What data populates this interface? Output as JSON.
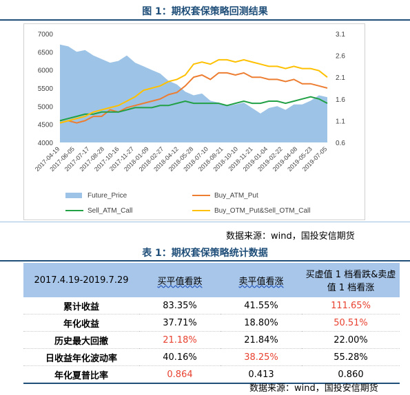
{
  "figure": {
    "title": "图 1：期权套保策略回测结果",
    "source": "数据来源：wind，国投安信期货"
  },
  "chart_data": {
    "type": "area",
    "x_tick_labels": [
      "2017-04-19",
      "2017-06-05",
      "2017-07-17",
      "2017-08-28",
      "2017-10-16",
      "2017-11-27",
      "2018-01-09",
      "2018-02-27",
      "2018-04-12",
      "2018-05-28",
      "2018-07-10",
      "2018-08-21",
      "2018-10-10",
      "2018-11-21",
      "2019-01-04",
      "2019-02-22",
      "2019-04-08",
      "2019-05-23",
      "2019-07-05"
    ],
    "y_left": {
      "ylim": [
        4000,
        7000
      ],
      "ticks": [
        "4000",
        "4500",
        "5000",
        "5500",
        "6000",
        "6500",
        "7000"
      ]
    },
    "y_right": {
      "ylim": [
        0.6,
        3.1
      ],
      "ticks": [
        "0.6",
        "1.1",
        "1.6",
        "2.1",
        "2.6",
        "3.1"
      ]
    },
    "legend_placement": "bottom",
    "series": [
      {
        "name": "Future_Price",
        "axis": "left",
        "kind": "area",
        "color": "#9dc3e6",
        "values": [
          6700,
          6650,
          6500,
          6550,
          6400,
          6300,
          6200,
          6250,
          6400,
          6200,
          6100,
          6000,
          5900,
          5700,
          5600,
          5400,
          5300,
          5350,
          5150,
          5100,
          5000,
          5050,
          5100,
          4950,
          4800,
          4950,
          5000,
          4900,
          5050,
          5050,
          5150,
          5300,
          5250
        ]
      },
      {
        "name": "Buy_ATM_Put",
        "axis": "right",
        "kind": "line",
        "color": "#ed7d31",
        "values": [
          1.05,
          1.1,
          1.05,
          1.1,
          1.2,
          1.2,
          1.35,
          1.3,
          1.4,
          1.45,
          1.5,
          1.55,
          1.6,
          1.7,
          1.75,
          1.9,
          2.1,
          2.15,
          2.05,
          2.2,
          2.2,
          2.15,
          2.2,
          2.1,
          2.1,
          2.05,
          2.05,
          2.0,
          2.05,
          1.95,
          1.95,
          1.9,
          1.85
        ]
      },
      {
        "name": "Sell_ATM_Call",
        "axis": "right",
        "kind": "line",
        "color": "#21a045",
        "values": [
          1.1,
          1.15,
          1.2,
          1.25,
          1.25,
          1.3,
          1.3,
          1.3,
          1.35,
          1.4,
          1.4,
          1.4,
          1.45,
          1.45,
          1.5,
          1.55,
          1.5,
          1.5,
          1.5,
          1.5,
          1.45,
          1.5,
          1.55,
          1.5,
          1.5,
          1.55,
          1.55,
          1.5,
          1.55,
          1.6,
          1.65,
          1.6,
          1.5
        ]
      },
      {
        "name": "Buy_OTM_Put&Sell_OTM_Call",
        "axis": "right",
        "kind": "line",
        "color": "#ffc000",
        "values": [
          1.05,
          1.1,
          1.15,
          1.2,
          1.3,
          1.35,
          1.4,
          1.45,
          1.55,
          1.65,
          1.8,
          1.85,
          1.9,
          2.0,
          2.05,
          2.15,
          2.4,
          2.45,
          2.4,
          2.5,
          2.5,
          2.45,
          2.5,
          2.45,
          2.4,
          2.35,
          2.35,
          2.3,
          2.35,
          2.3,
          2.3,
          2.25,
          2.1
        ]
      }
    ]
  },
  "table": {
    "title": "表 1：期权套保策略统计数据",
    "source": "数据来源：wind，国投安信期货",
    "headers": [
      "2017.4.19-2019.7.29",
      "买平值看跌",
      "卖平值看涨",
      "买虚值 1 档看跌&卖虚值 1 档看涨"
    ],
    "rows": [
      {
        "label": "累计收益",
        "values": [
          "83.35%",
          "41.55%",
          "111.65%"
        ],
        "red": [
          false,
          false,
          true
        ]
      },
      {
        "label": "年化收益",
        "values": [
          "37.71%",
          "18.80%",
          "50.51%"
        ],
        "red": [
          false,
          false,
          true
        ]
      },
      {
        "label": "历史最大回撤",
        "values": [
          "21.18%",
          "21.84%",
          "22.00%"
        ],
        "red": [
          true,
          false,
          false
        ]
      },
      {
        "label": "日收益年化波动率",
        "values": [
          "40.16%",
          "38.25%",
          "55.28%"
        ],
        "red": [
          false,
          true,
          false
        ]
      },
      {
        "label": "年化夏普比率",
        "values": [
          "0.864",
          "0.413",
          "0.860"
        ],
        "red": [
          true,
          false,
          false
        ]
      }
    ]
  }
}
